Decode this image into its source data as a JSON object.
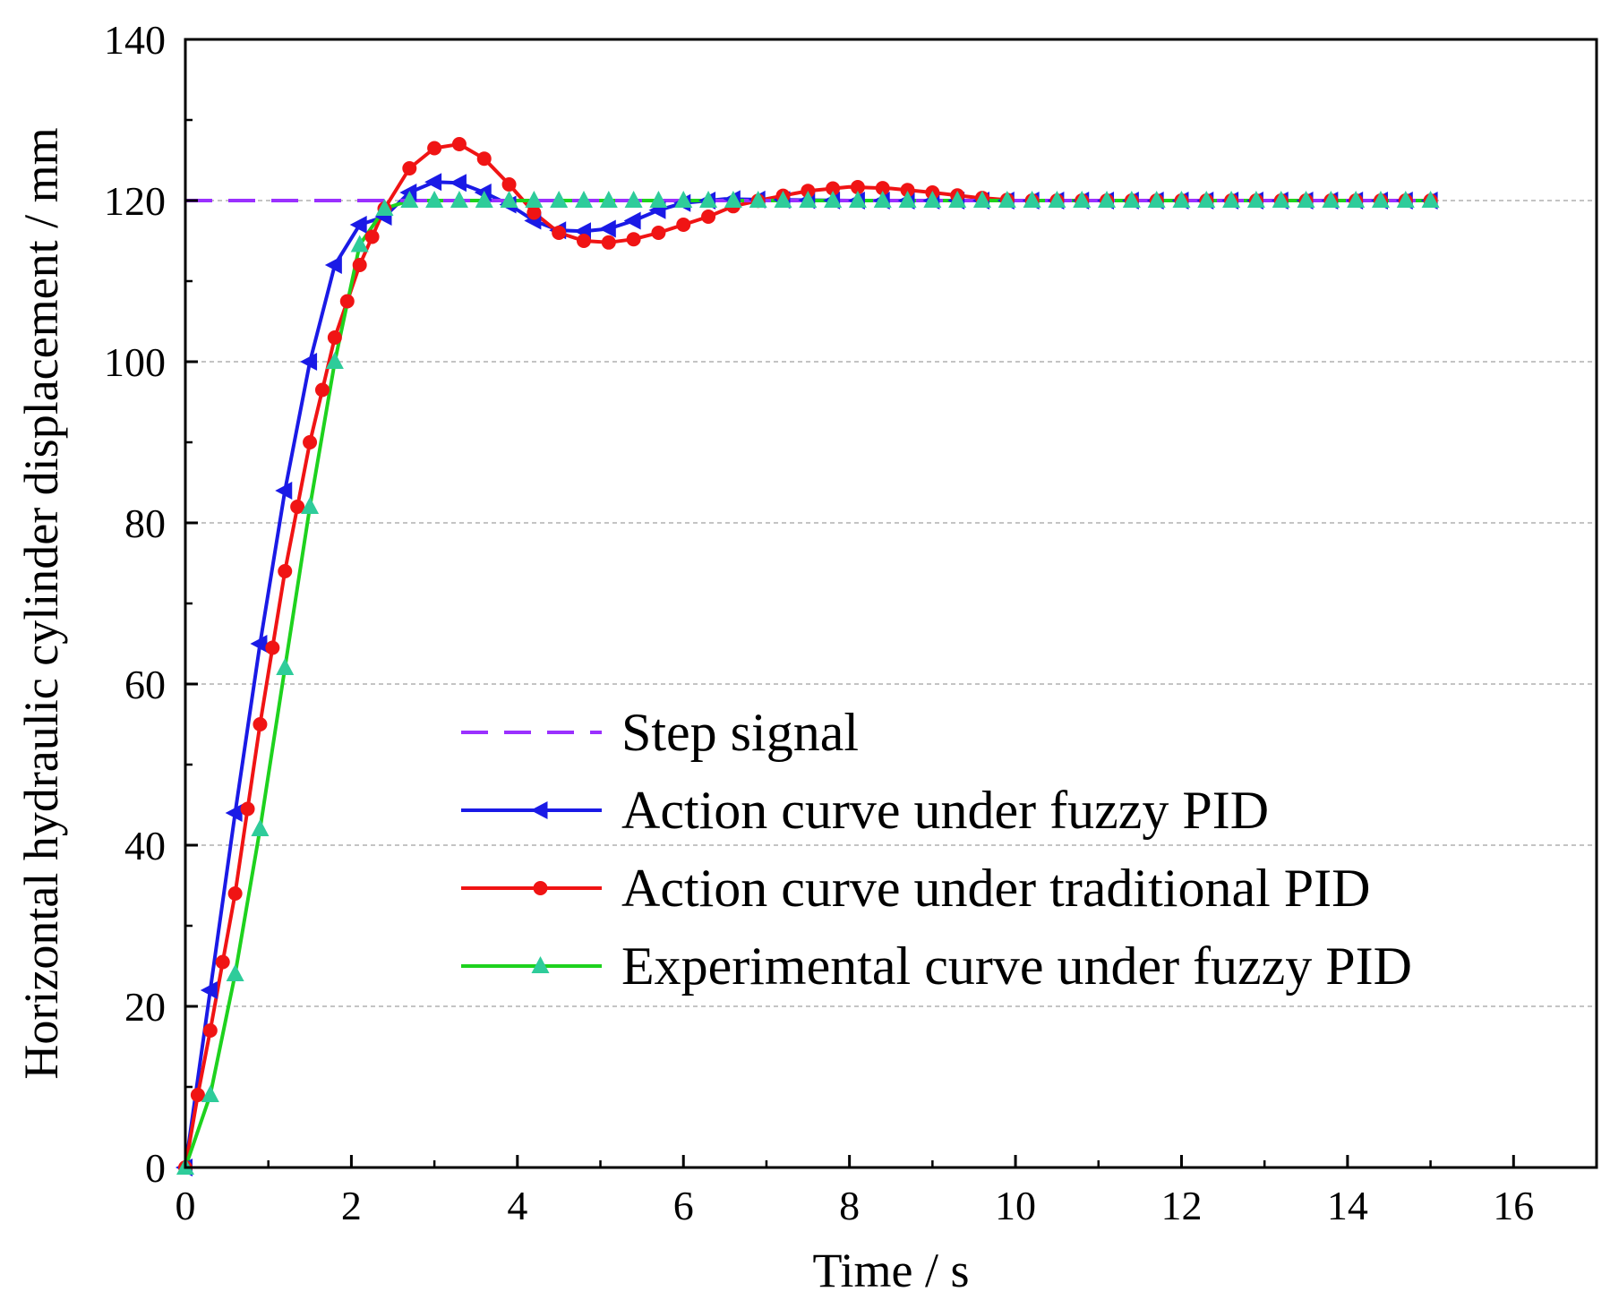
{
  "chart_data": {
    "type": "line",
    "title": "",
    "xlabel": "Time / s",
    "ylabel": "Horizontal hydraulic cylinder displacement / mm",
    "xlim": [
      0,
      17
    ],
    "ylim": [
      0,
      140
    ],
    "xticks": [
      0,
      2,
      4,
      6,
      8,
      10,
      12,
      14,
      16
    ],
    "yticks": [
      0,
      20,
      40,
      60,
      80,
      100,
      120,
      140
    ],
    "grid": "horizontal-dashed",
    "legend_position": "center-right",
    "series": [
      {
        "name": "Step signal",
        "color": "#9B30FF",
        "style": "dashed",
        "marker": "none",
        "x": [
          0,
          15
        ],
        "y": [
          120,
          120
        ]
      },
      {
        "name": "Action curve under fuzzy PID",
        "color": "#1A1AE6",
        "style": "solid",
        "marker": "left-triangle",
        "x": [
          0,
          0.3,
          0.6,
          0.9,
          1.2,
          1.5,
          1.8,
          2.1,
          2.4,
          2.7,
          3.0,
          3.3,
          3.6,
          3.9,
          4.2,
          4.5,
          4.8,
          5.1,
          5.4,
          5.7,
          6.0,
          6.5,
          7.0,
          8.0,
          9.0,
          10.0,
          11.0,
          12.0,
          13.0,
          14.0,
          15.0
        ],
        "y": [
          0,
          22,
          44,
          65,
          84,
          100,
          112,
          117,
          118,
          121,
          122.3,
          122.2,
          121,
          119.5,
          117.5,
          116.3,
          116.2,
          116.5,
          117.5,
          118.8,
          119.7,
          120.2,
          120.1,
          120,
          120,
          120,
          120,
          120,
          120,
          120,
          120
        ]
      },
      {
        "name": "Action curve under traditional PID",
        "color": "#F01414",
        "style": "solid",
        "marker": "circle",
        "x": [
          0,
          0.15,
          0.3,
          0.6,
          0.9,
          1.2,
          1.5,
          1.8,
          2.1,
          2.4,
          2.7,
          3.0,
          3.3,
          3.6,
          3.9,
          4.2,
          4.5,
          4.8,
          5.1,
          5.4,
          5.7,
          6.0,
          6.3,
          6.6,
          7.0,
          7.5,
          8.0,
          8.5,
          9.0,
          9.5,
          10.0,
          11.0,
          12.0,
          13.0,
          14.0,
          15.0
        ],
        "y": [
          0,
          9,
          17,
          34,
          55,
          74,
          90,
          103,
          112,
          119,
          124,
          126.5,
          127,
          125.2,
          122,
          118.5,
          116,
          115,
          114.8,
          115.2,
          116,
          117,
          118,
          119.3,
          120.2,
          121.2,
          121.7,
          121.5,
          121,
          120.4,
          120,
          120,
          120,
          120,
          120,
          120
        ]
      },
      {
        "name": "Experimental curve under fuzzy PID",
        "color": "#1ED21E",
        "marker_color": "#2ECC9A",
        "style": "solid",
        "marker": "triangle",
        "x": [
          0,
          0.3,
          0.6,
          0.9,
          1.2,
          1.5,
          1.8,
          2.1,
          2.4,
          2.7,
          3.0,
          3.5,
          4.0,
          5.0,
          6.0,
          7.0,
          8.0,
          9.0,
          10.0,
          11.0,
          12.0,
          13.0,
          14.0,
          15.0
        ],
        "y": [
          0,
          9,
          24,
          42,
          62,
          82,
          100,
          114.5,
          119,
          120,
          120,
          120,
          120,
          120,
          120,
          120,
          120,
          120,
          120,
          120,
          120,
          120,
          120,
          120
        ]
      }
    ]
  }
}
